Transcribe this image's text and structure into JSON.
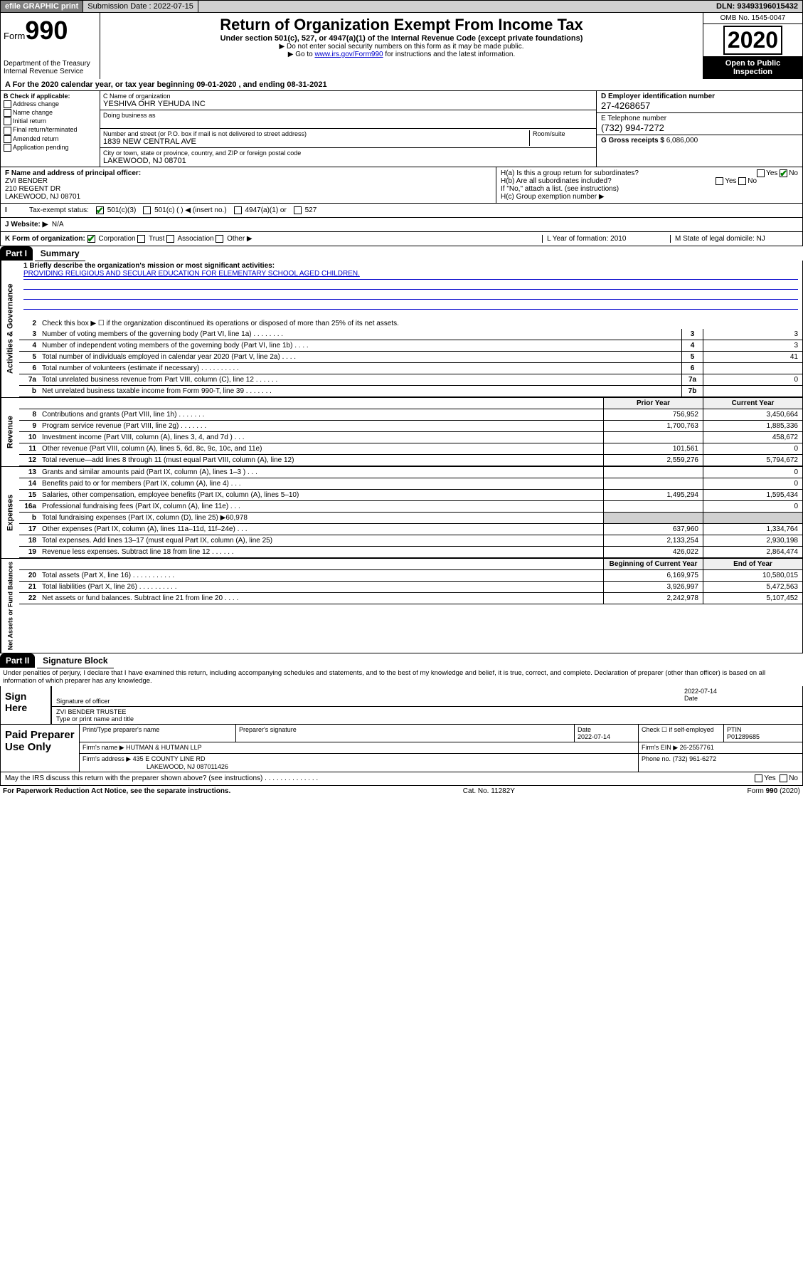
{
  "topbar": {
    "efile": "efile GRAPHIC print",
    "submission_label": "Submission Date : 2022-07-15",
    "dln": "DLN: 93493196015432"
  },
  "header": {
    "form_label": "Form",
    "form_num": "990",
    "dept": "Department of the Treasury\nInternal Revenue Service",
    "title": "Return of Organization Exempt From Income Tax",
    "subtitle": "Under section 501(c), 527, or 4947(a)(1) of the Internal Revenue Code (except private foundations)",
    "note1": "▶ Do not enter social security numbers on this form as it may be made public.",
    "note2_pre": "▶ Go to ",
    "note2_link": "www.irs.gov/Form990",
    "note2_post": " for instructions and the latest information.",
    "omb": "OMB No. 1545-0047",
    "year": "2020",
    "openpub": "Open to Public Inspection"
  },
  "period": "A For the 2020 calendar year, or tax year beginning 09-01-2020   , and ending 08-31-2021",
  "checkB": {
    "label": "B Check if applicable:",
    "opts": [
      "Address change",
      "Name change",
      "Initial return",
      "Final return/terminated",
      "Amended return",
      "Application pending"
    ]
  },
  "org": {
    "c_label": "C Name of organization",
    "name": "YESHIVA OHR YEHUDA INC",
    "dba_label": "Doing business as",
    "addr_label": "Number and street (or P.O. box if mail is not delivered to street address)",
    "room_label": "Room/suite",
    "addr": "1839 NEW CENTRAL AVE",
    "city_label": "City or town, state or province, country, and ZIP or foreign postal code",
    "city": "LAKEWOOD, NJ  08701"
  },
  "right": {
    "d_label": "D Employer identification number",
    "ein": "27-4268657",
    "e_label": "E Telephone number",
    "phone": "(732) 994-7272",
    "g_label": "G Gross receipts $",
    "gross": "6,086,000"
  },
  "officer": {
    "f_label": "F Name and address of principal officer:",
    "name": "ZVI BENDER",
    "addr1": "210 REGENT DR",
    "addr2": "LAKEWOOD, NJ  08701"
  },
  "h": {
    "a": "H(a)  Is this a group return for subordinates?",
    "b": "H(b)  Are all subordinates included?",
    "b_note": "If \"No,\" attach a list. (see instructions)",
    "c": "H(c)  Group exemption number ▶",
    "yes": "Yes",
    "no": "No"
  },
  "exempt": {
    "label": "Tax-exempt status:",
    "o1": "501(c)(3)",
    "o2": "501(c) (   ) ◀ (insert no.)",
    "o3": "4947(a)(1) or",
    "o4": "527"
  },
  "website": {
    "label": "J  Website: ▶",
    "val": "N/A"
  },
  "korg": {
    "label": "K Form of organization:",
    "opts": [
      "Corporation",
      "Trust",
      "Association",
      "Other ▶"
    ],
    "l": "L Year of formation: 2010",
    "m": "M State of legal domicile: NJ"
  },
  "partI": {
    "tag": "Part I",
    "title": "Summary",
    "mission_label": "1   Briefly describe the organization's mission or most significant activities:",
    "mission": "PROVIDING RELIGIOUS AND SECULAR EDUCATION FOR ELEMENTARY SCHOOL AGED CHILDREN.",
    "line2": "Check this box ▶ ☐  if the organization discontinued its operations or disposed of more than 25% of its net assets.",
    "sides": [
      "Activities & Governance",
      "Revenue",
      "Expenses",
      "Net Assets or Fund Balances"
    ],
    "gov_lines": [
      {
        "n": "3",
        "d": "Number of voting members of the governing body (Part VI, line 1a)   .   .   .   .   .   .   .   .",
        "b": "3",
        "v": "3"
      },
      {
        "n": "4",
        "d": "Number of independent voting members of the governing body (Part VI, line 1b)   .   .   .   .",
        "b": "4",
        "v": "3"
      },
      {
        "n": "5",
        "d": "Total number of individuals employed in calendar year 2020 (Part V, line 2a)   .   .   .   .",
        "b": "5",
        "v": "41"
      },
      {
        "n": "6",
        "d": "Total number of volunteers (estimate if necessary)   .   .   .   .   .   .   .   .   .   .",
        "b": "6",
        "v": ""
      },
      {
        "n": "7a",
        "d": "Total unrelated business revenue from Part VIII, column (C), line 12   .   .   .   .   .   .",
        "b": "7a",
        "v": "0"
      },
      {
        "n": "b",
        "d": "Net unrelated business taxable income from Form 990-T, line 39   .   .   .   .   .   .   .",
        "b": "7b",
        "v": ""
      }
    ],
    "col_headers": {
      "prior": "Prior Year",
      "current": "Current Year"
    },
    "rev_lines": [
      {
        "n": "8",
        "d": "Contributions and grants (Part VIII, line 1h)   .   .   .   .   .   .   .",
        "p": "756,952",
        "c": "3,450,664"
      },
      {
        "n": "9",
        "d": "Program service revenue (Part VIII, line 2g)   .   .   .   .   .   .   .",
        "p": "1,700,763",
        "c": "1,885,336"
      },
      {
        "n": "10",
        "d": "Investment income (Part VIII, column (A), lines 3, 4, and 7d )   .   .   .",
        "p": "",
        "c": "458,672"
      },
      {
        "n": "11",
        "d": "Other revenue (Part VIII, column (A), lines 5, 6d, 8c, 9c, 10c, and 11e)",
        "p": "101,561",
        "c": "0"
      },
      {
        "n": "12",
        "d": "Total revenue—add lines 8 through 11 (must equal Part VIII, column (A), line 12)",
        "p": "2,559,276",
        "c": "5,794,672"
      }
    ],
    "exp_lines": [
      {
        "n": "13",
        "d": "Grants and similar amounts paid (Part IX, column (A), lines 1–3 )   .   .   .",
        "p": "",
        "c": "0"
      },
      {
        "n": "14",
        "d": "Benefits paid to or for members (Part IX, column (A), line 4)   .   .   .",
        "p": "",
        "c": "0"
      },
      {
        "n": "15",
        "d": "Salaries, other compensation, employee benefits (Part IX, column (A), lines 5–10)",
        "p": "1,495,294",
        "c": "1,595,434"
      },
      {
        "n": "16a",
        "d": "Professional fundraising fees (Part IX, column (A), line 11e)   .   .   .",
        "p": "",
        "c": "0"
      },
      {
        "n": "b",
        "d": "Total fundraising expenses (Part IX, column (D), line 25) ▶60,978",
        "p": "—",
        "c": "—"
      },
      {
        "n": "17",
        "d": "Other expenses (Part IX, column (A), lines 11a–11d, 11f–24e)   .   .   .",
        "p": "637,960",
        "c": "1,334,764"
      },
      {
        "n": "18",
        "d": "Total expenses. Add lines 13–17 (must equal Part IX, column (A), line 25)",
        "p": "2,133,254",
        "c": "2,930,198"
      },
      {
        "n": "19",
        "d": "Revenue less expenses. Subtract line 18 from line 12   .   .   .   .   .   .",
        "p": "426,022",
        "c": "2,864,474"
      }
    ],
    "net_headers": {
      "begin": "Beginning of Current Year",
      "end": "End of Year"
    },
    "net_lines": [
      {
        "n": "20",
        "d": "Total assets (Part X, line 16)   .   .   .   .   .   .   .   .   .   .   .",
        "p": "6,169,975",
        "c": "10,580,015"
      },
      {
        "n": "21",
        "d": "Total liabilities (Part X, line 26)   .   .   .   .   .   .   .   .   .   .",
        "p": "3,926,997",
        "c": "5,472,563"
      },
      {
        "n": "22",
        "d": "Net assets or fund balances. Subtract line 21 from line 20   .   .   .   .",
        "p": "2,242,978",
        "c": "5,107,452"
      }
    ]
  },
  "partII": {
    "tag": "Part II",
    "title": "Signature Block",
    "penalties": "Under penalties of perjury, I declare that I have examined this return, including accompanying schedules and statements, and to the best of my knowledge and belief, it is true, correct, and complete. Declaration of preparer (other than officer) is based on all information of which preparer has any knowledge.",
    "sign_here": "Sign Here",
    "sig_officer": "Signature of officer",
    "date_label": "Date",
    "date": "2022-07-14",
    "officer_name": "ZVI BENDER  TRUSTEE",
    "type_label": "Type or print name and title",
    "paid": "Paid Preparer Use Only",
    "prep_name_label": "Print/Type preparer's name",
    "prep_sig_label": "Preparer's signature",
    "prep_date": "2022-07-14",
    "self_emp": "Check ☐ if self-employed",
    "ptin_label": "PTIN",
    "ptin": "P01289685",
    "firm_name_label": "Firm's name     ▶",
    "firm_name": "HUTMAN & HUTMAN LLP",
    "firm_ein_label": "Firm's EIN ▶",
    "firm_ein": "26-2557761",
    "firm_addr_label": "Firm's address ▶",
    "firm_addr1": "435 E COUNTY LINE RD",
    "firm_addr2": "LAKEWOOD, NJ  087011426",
    "firm_phone_label": "Phone no.",
    "firm_phone": "(732) 961-6272",
    "discuss": "May the IRS discuss this return with the preparer shown above? (see instructions)   .   .   .   .   .   .   .   .   .   .   .   .   .   ."
  },
  "footer": {
    "left": "For Paperwork Reduction Act Notice, see the separate instructions.",
    "mid": "Cat. No. 11282Y",
    "right": "Form 990 (2020)"
  }
}
